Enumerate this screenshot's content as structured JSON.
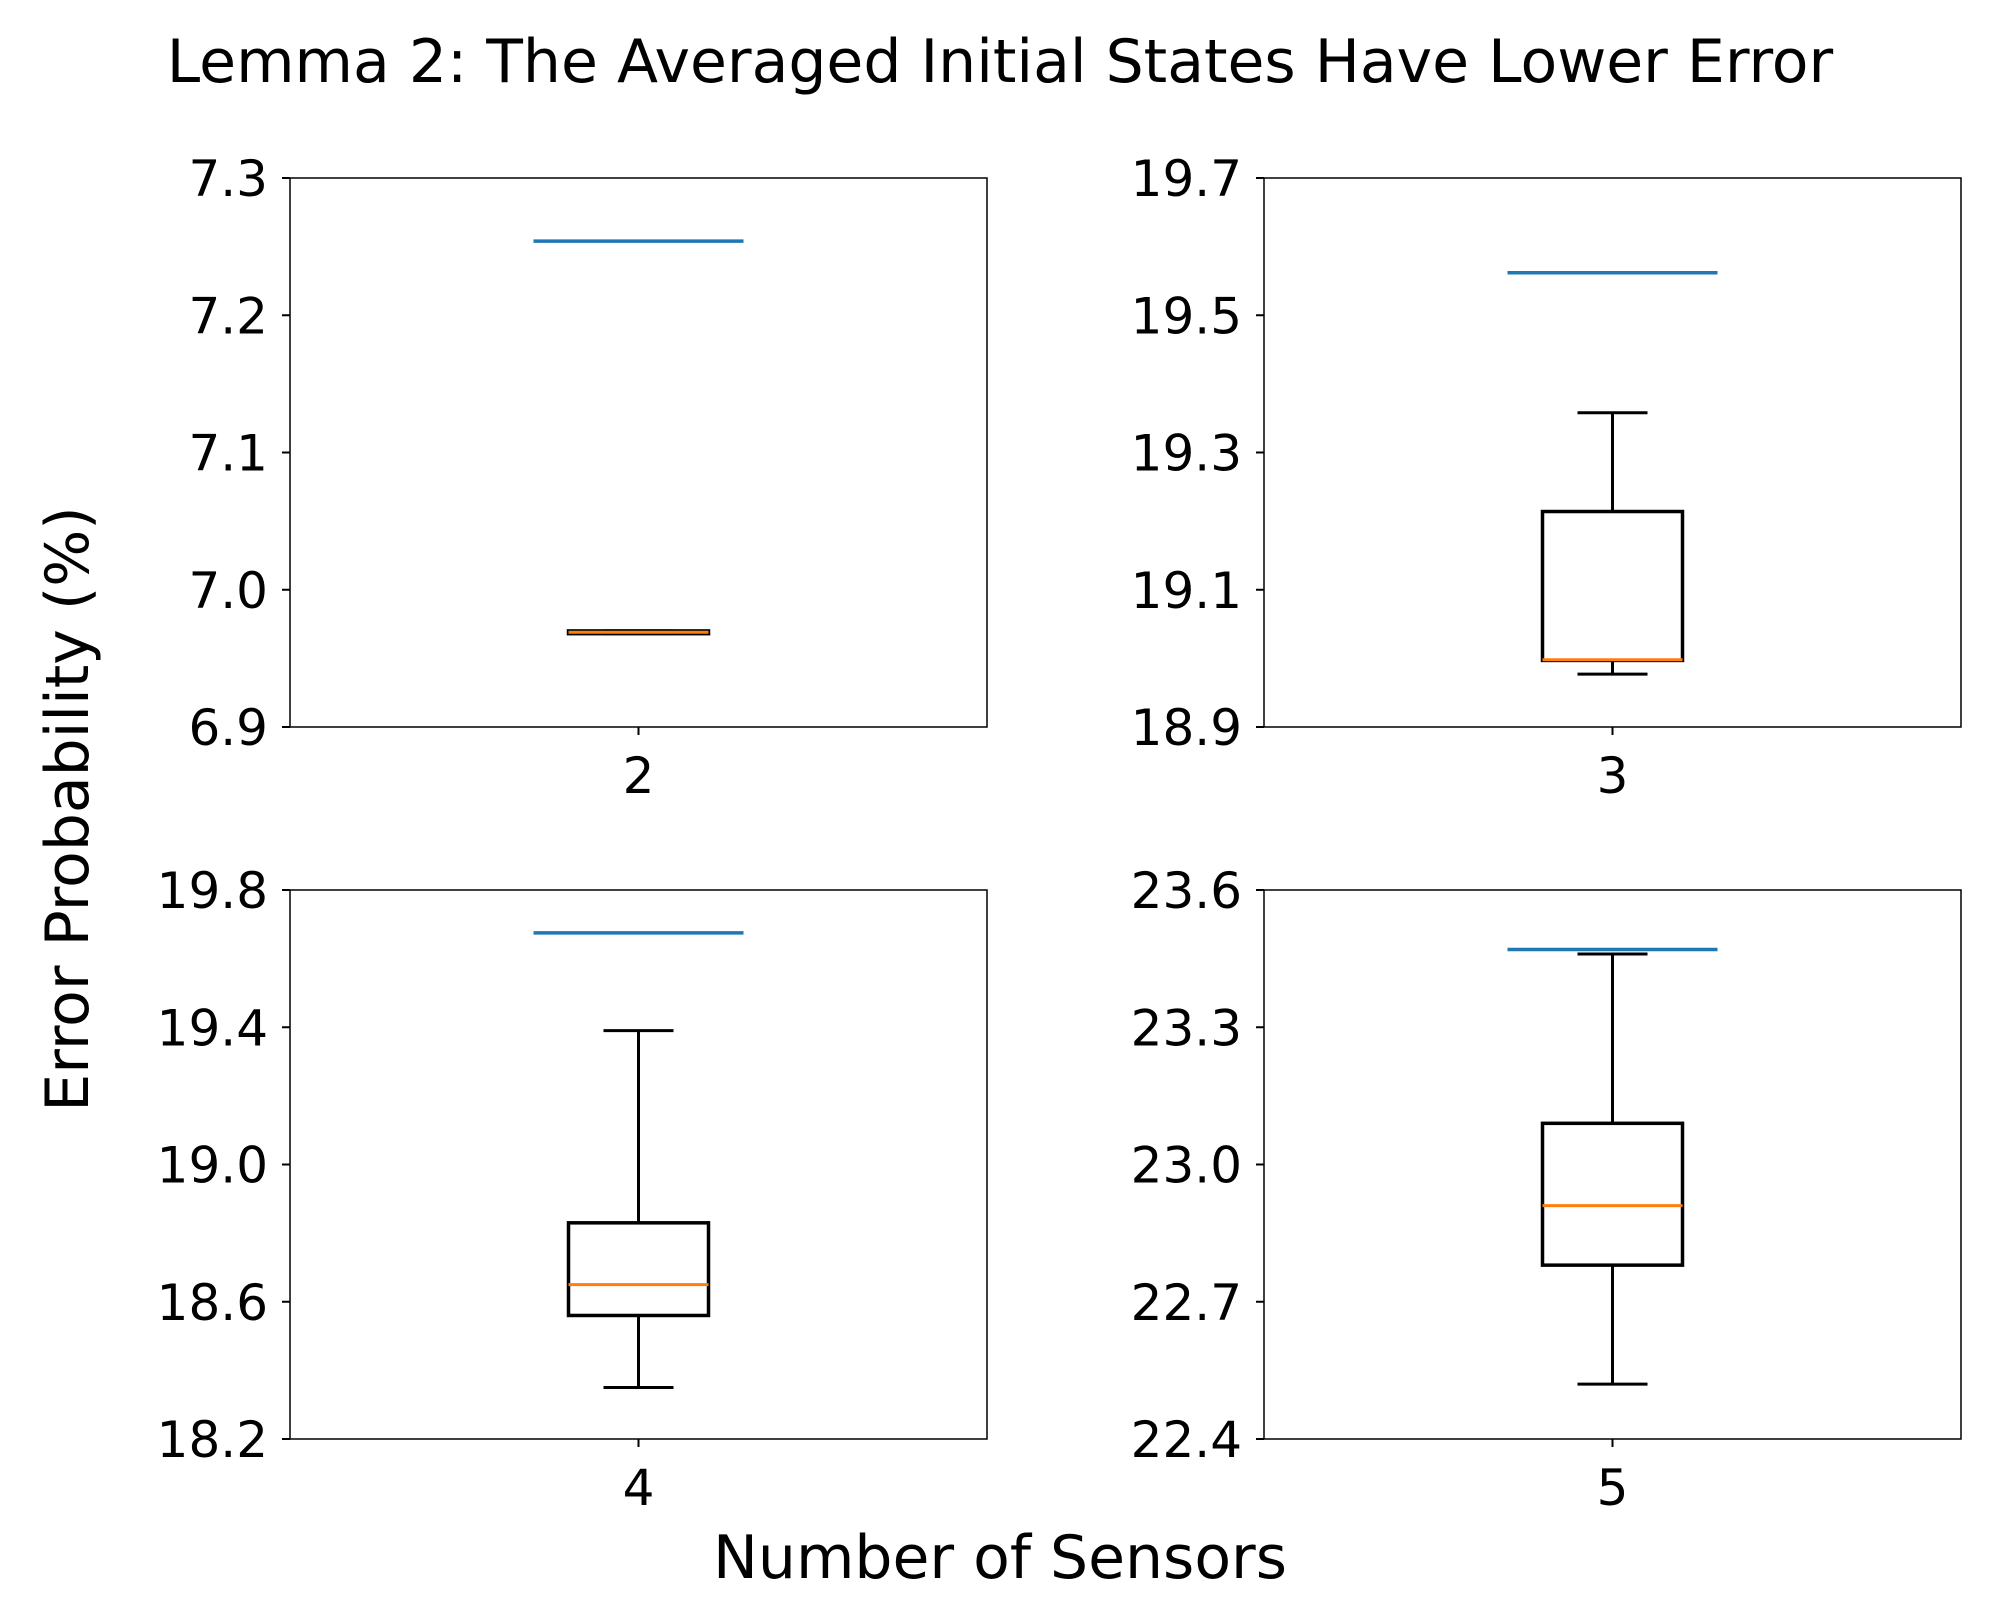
{
  "title": "Lemma 2: The Averaged Initial States Have Lower Error",
  "xlabel": "Number of Sensors",
  "ylabel": "Error Probability (%)",
  "colors": {
    "reference_line": "#1f77b4",
    "median": "#ff7f0e",
    "box": "#000000"
  },
  "chart_data": [
    {
      "type": "box",
      "category": "2",
      "yticks": [
        "6.9",
        "7.0",
        "7.1",
        "7.2",
        "7.3"
      ],
      "ylim": [
        6.9,
        7.3
      ],
      "whisker_low": 6.968,
      "q1": 6.968,
      "median": 6.969,
      "q3": 6.97,
      "whisker_high": 6.97,
      "reference_line": 7.254
    },
    {
      "type": "box",
      "category": "3",
      "yticks": [
        "18.9",
        "19.1",
        "19.3",
        "19.5",
        "19.7"
      ],
      "ylim": [
        18.9,
        19.7
      ],
      "whisker_low": 18.977,
      "q1": 18.997,
      "median": 18.998,
      "q3": 19.214,
      "whisker_high": 19.358,
      "reference_line": 19.562
    },
    {
      "type": "box",
      "category": "4",
      "yticks": [
        "18.2",
        "18.6",
        "19.0",
        "19.4",
        "19.8"
      ],
      "ylim": [
        18.2,
        19.8
      ],
      "whisker_low": 18.35,
      "q1": 18.56,
      "median": 18.65,
      "q3": 18.83,
      "whisker_high": 19.39,
      "reference_line": 19.675
    },
    {
      "type": "box",
      "category": "5",
      "yticks": [
        "22.4",
        "22.7",
        "23.0",
        "23.3",
        "23.6"
      ],
      "ylim": [
        22.4,
        23.6
      ],
      "whisker_low": 22.52,
      "q1": 22.78,
      "median": 22.91,
      "q3": 23.09,
      "whisker_high": 23.46,
      "reference_line": 23.47
    }
  ]
}
